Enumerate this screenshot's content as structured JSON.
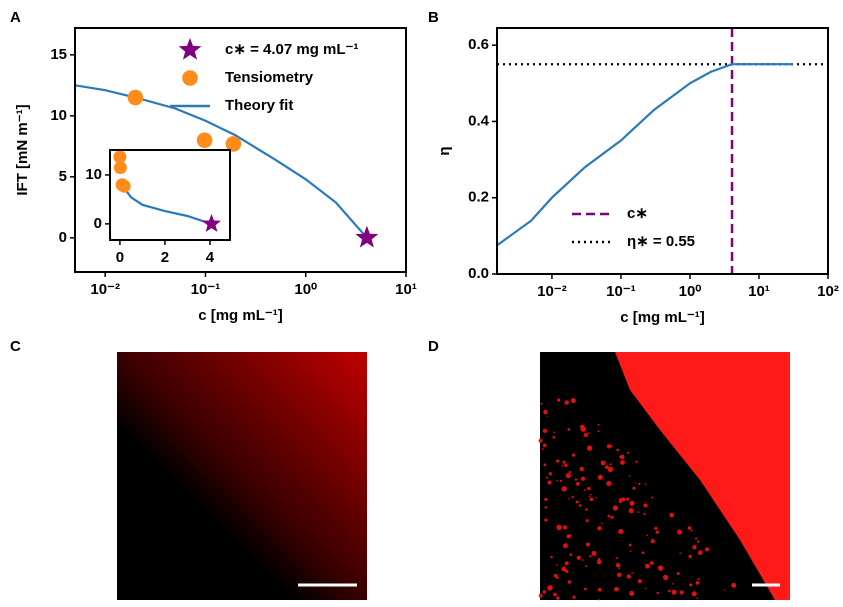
{
  "panel_labels": [
    "A",
    "B",
    "C",
    "D"
  ],
  "chart_data": [
    {
      "type": "line",
      "xlabel": "c [mg mL⁻¹]",
      "ylabel": "IFT [mN m⁻¹]",
      "xlog": true,
      "xlim": [
        0.005,
        10
      ],
      "xticks": [
        {
          "value": 0.01,
          "label": "10⁻²"
        },
        {
          "value": 0.1,
          "label": "10⁻¹"
        },
        {
          "value": 1,
          "label": "10⁰"
        },
        {
          "value": 10,
          "label": "10¹"
        }
      ],
      "ylim": [
        -2.8,
        17.2
      ],
      "yticks": [
        0,
        5,
        10,
        15
      ],
      "legend": "upper right",
      "series": [
        {
          "name": "c∗ = 4.07 mg mL⁻¹",
          "color": "#800080",
          "marker": "star",
          "x": [
            4.07
          ],
          "values": [
            0
          ]
        },
        {
          "name": "Tensiometry",
          "color": "#ff8c1a",
          "marker": "circle",
          "x": [
            0.02,
            0.098,
            0.19
          ],
          "values": [
            11.5,
            8.0,
            7.7
          ]
        },
        {
          "name": "Theory fit",
          "color": "#2a7ab8",
          "marker": "none",
          "x": [
            0.005,
            0.01,
            0.02,
            0.05,
            0.1,
            0.2,
            0.5,
            1,
            2,
            4.07
          ],
          "values": [
            12.5,
            12.1,
            11.5,
            10.6,
            9.6,
            8.4,
            6.4,
            4.8,
            2.9,
            0
          ]
        }
      ]
    },
    {
      "type": "line",
      "xlog": false,
      "xlim": [
        -0.44,
        4.89
      ],
      "xticks": [
        0,
        2,
        4
      ],
      "ylim": [
        -3.3,
        15.1
      ],
      "yticks": [
        0,
        10
      ],
      "series": [
        {
          "color": "#ff8c1a",
          "marker": "circle",
          "x": [
            0.0,
            0.02,
            0.1,
            0.19
          ],
          "values": [
            13.7,
            11.5,
            8.0,
            7.7
          ]
        },
        {
          "color": "#2a7ab8",
          "marker": "none",
          "x": [
            0.19,
            0.3,
            0.5,
            1,
            2,
            3,
            4.07
          ],
          "values": [
            7.7,
            6.6,
            5.4,
            3.9,
            2.6,
            1.6,
            0
          ]
        },
        {
          "color": "#800080",
          "marker": "star",
          "x": [
            4.07
          ],
          "values": [
            0
          ]
        }
      ]
    },
    {
      "type": "line",
      "xlabel": "c [mg mL⁻¹]",
      "ylabel": "η",
      "xlog": true,
      "xlim": [
        0.0016,
        100
      ],
      "xticks": [
        {
          "value": 0.01,
          "label": "10⁻²"
        },
        {
          "value": 0.1,
          "label": "10⁻¹"
        },
        {
          "value": 1,
          "label": "10⁰"
        },
        {
          "value": 10,
          "label": "10¹"
        },
        {
          "value": 100,
          "label": "10²"
        }
      ],
      "ylim": [
        0,
        0.645
      ],
      "yticks": [
        {
          "value": 0,
          "label": "0.0"
        },
        0.2,
        0.4,
        0.6
      ],
      "legend": "lower center",
      "series": [
        {
          "color": "#2a7ab8",
          "marker": "none",
          "x": [
            0.0016,
            0.005,
            0.01,
            0.03,
            0.1,
            0.3,
            1,
            2,
            4.07,
            31
          ],
          "values": [
            0.075,
            0.14,
            0.2,
            0.28,
            0.35,
            0.43,
            0.5,
            0.53,
            0.55,
            0.55
          ]
        }
      ],
      "vlines": [
        {
          "name": "c∗",
          "x": 4.07,
          "color": "#800080",
          "style": "dashed"
        }
      ],
      "hlines": [
        {
          "name": "η∗ = 0.55",
          "y": 0.55,
          "color": "#000000",
          "style": "dotted"
        }
      ]
    }
  ]
}
